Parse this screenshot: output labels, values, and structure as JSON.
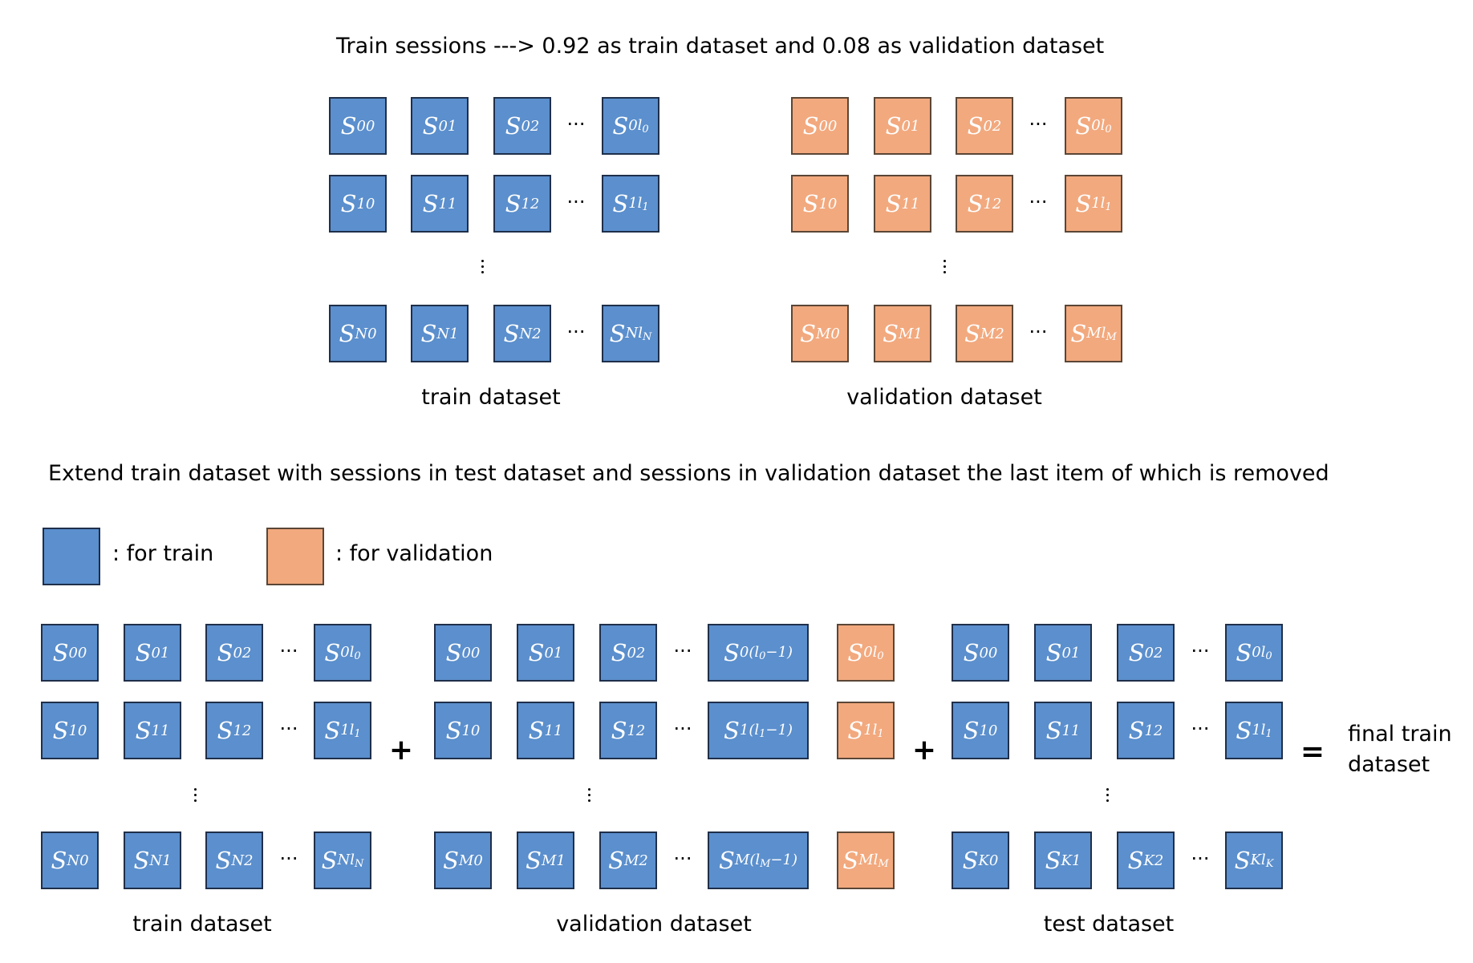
{
  "title": "Train sessions  --->  0.92 as train dataset and 0.08 as validation dataset",
  "extend_text": "Extend train dataset with sessions in test dataset and sessions in validation dataset the last item of which is removed",
  "legend": {
    "train_label": ": for train",
    "validation_label": ": for validation"
  },
  "colors": {
    "train": "#5b8fcd",
    "validation": "#f2a97e"
  },
  "operators": {
    "plus": "+",
    "equals": "="
  },
  "result_label_line1": "final train",
  "result_label_line2": "dataset",
  "ellipsis": "···",
  "top": {
    "train": {
      "caption": "train dataset",
      "rows": [
        [
          "S|00",
          "S|01",
          "S|02",
          "S|0l_0"
        ],
        [
          "S|10",
          "S|11",
          "S|12",
          "S|1l_1"
        ],
        [
          "S|N0",
          "S|N1",
          "S|N2",
          "S|Nl_N"
        ]
      ]
    },
    "validation": {
      "caption": "validation dataset",
      "rows": [
        [
          "S|00",
          "S|01",
          "S|02",
          "S|0l_0"
        ],
        [
          "S|10",
          "S|11",
          "S|12",
          "S|1l_1"
        ],
        [
          "S|M0",
          "S|M1",
          "S|M2",
          "S|Ml_M"
        ]
      ]
    }
  },
  "bottom": {
    "train": {
      "caption": "train dataset",
      "rows": [
        [
          "S|00",
          "S|01",
          "S|02",
          "S|0l_0"
        ],
        [
          "S|10",
          "S|11",
          "S|12",
          "S|1l_1"
        ],
        [
          "S|N0",
          "S|N1",
          "S|N2",
          "S|Nl_N"
        ]
      ]
    },
    "validation": {
      "caption": "validation dataset",
      "rows": [
        [
          "S|00",
          "S|01",
          "S|02",
          "S|0(l_0−1)",
          "S|0l_0"
        ],
        [
          "S|10",
          "S|11",
          "S|12",
          "S|1(l_1−1)",
          "S|1l_1"
        ],
        [
          "S|M0",
          "S|M1",
          "S|M2",
          "S|M(l_M−1)",
          "S|Ml_M"
        ]
      ]
    },
    "test": {
      "caption": "test dataset",
      "rows": [
        [
          "S|00",
          "S|01",
          "S|02",
          "S|0l_0"
        ],
        [
          "S|10",
          "S|11",
          "S|12",
          "S|1l_1"
        ],
        [
          "S|K0",
          "S|K1",
          "S|K2",
          "S|Kl_K"
        ]
      ]
    }
  }
}
